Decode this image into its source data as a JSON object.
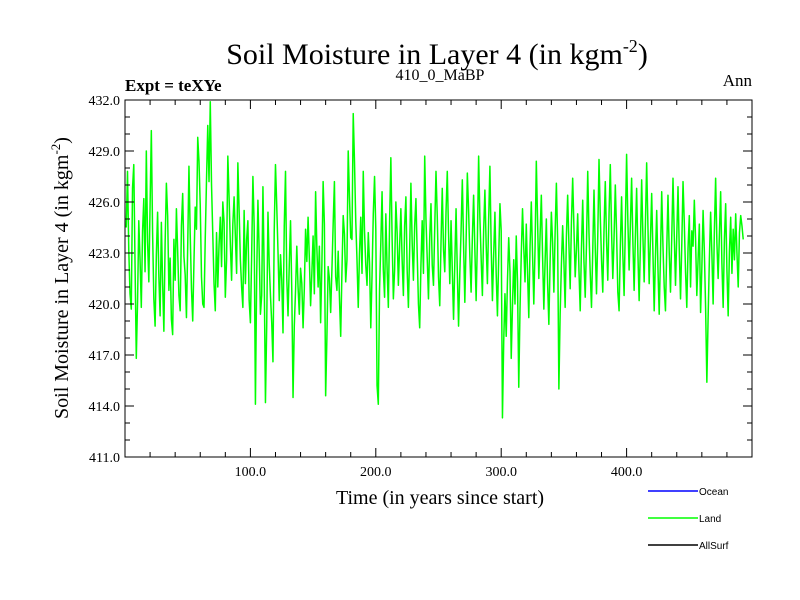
{
  "chart_data": {
    "type": "line",
    "title_main": "Soil Moisture in Layer 4 (in kgm",
    "title_sup": "-2",
    "title_close": ")",
    "subtitle_left": "Expt = teXYe",
    "subtitle_center": "410_0_MaBP",
    "subtitle_right": "Ann",
    "xlabel": "Time (in years since start)",
    "ylabel_main": "Soil Moisture in Layer 4 (in kgm",
    "ylabel_sup": "-2",
    "ylabel_close": ")",
    "xlim": [
      0,
      500
    ],
    "ylim": [
      411.0,
      432.0
    ],
    "x_ticks": [
      100,
      200,
      300,
      400
    ],
    "x_tick_labels": [
      "100.0",
      "200.0",
      "300.0",
      "400.0"
    ],
    "y_ticks": [
      411,
      414,
      417,
      420,
      423,
      426,
      429,
      432
    ],
    "y_tick_labels": [
      "411.0",
      "414.0",
      "417.0",
      "420.0",
      "423.0",
      "426.0",
      "429.0",
      "432.0"
    ],
    "legend_placement": "bottom-right, below plot",
    "series": [
      {
        "name": "Ocean",
        "color": "#0000ff",
        "values": []
      },
      {
        "name": "Land",
        "color": "#00ff00",
        "x_start": 1,
        "x_step": 1,
        "values": [
          424.5,
          427.8,
          423.2,
          420.6,
          419.7,
          426.8,
          428.2,
          422.4,
          416.8,
          420.1,
          424.9,
          422.6,
          419.8,
          424.3,
          426.2,
          421.9,
          429.0,
          423.7,
          421.3,
          425.8,
          430.2,
          424.2,
          420.3,
          418.7,
          422.9,
          425.4,
          421.6,
          419.3,
          424.8,
          421.2,
          418.4,
          423.6,
          427.1,
          425.2,
          420.8,
          422.7,
          419.1,
          418.2,
          423.8,
          421.4,
          425.6,
          423.1,
          420.5,
          419.6,
          424.6,
          426.5,
          422.8,
          421.7,
          419.2,
          423.4,
          428.1,
          424.1,
          420.9,
          419.0,
          422.5,
          425.7,
          424.4,
          429.8,
          428.4,
          425.8,
          421.6,
          420.0,
          419.8,
          423.9,
          427.3,
          430.5,
          427.2,
          431.9,
          427.0,
          424.1,
          421.2,
          419.6,
          424.2,
          421.0,
          423.5,
          425.1,
          422.2,
          426.0,
          424.8,
          420.4,
          422.6,
          428.7,
          426.3,
          423.5,
          421.4,
          424.7,
          426.3,
          424.0,
          421.8,
          428.3,
          425.5,
          422.6,
          421.0,
          419.8,
          425.5,
          421.2,
          423.8,
          424.9,
          420.2,
          418.9,
          422.8,
          427.5,
          424.6,
          414.1,
          421.6,
          426.1,
          423.1,
          419.4,
          420.5,
          426.9,
          421.8,
          414.2,
          418.7,
          425.4,
          422.4,
          420.5,
          418.9,
          416.6,
          424.3,
          428.2,
          425.8,
          423.1,
          420.2,
          422.9,
          421.4,
          418.3,
          424.6,
          427.8,
          421.5,
          419.3,
          422.3,
          424.9,
          420.8,
          414.5,
          418.7,
          420.8,
          423.4,
          421.0,
          419.4,
          422.1,
          421.2,
          418.6,
          420.9,
          424.4,
          422.5,
          425.1,
          422.7,
          419.9,
          421.8,
          424.0,
          420.6,
          426.6,
          423.3,
          421.0,
          423.4,
          418.9,
          422.3,
          427.2,
          424.7,
          414.6,
          418.0,
          422.2,
          421.5,
          419.5,
          422.0,
          424.7,
          427.2,
          421.6,
          420.8,
          423.1,
          420.4,
          418.1,
          421.9,
          425.2,
          424.1,
          421.3,
          422.6,
          429.0,
          426.3,
          423.9,
          423.8,
          431.2,
          428.4,
          424.9,
          422.6,
          419.8,
          423.0,
          425.1,
          421.8,
          427.8,
          424.3,
          422.3,
          421.1,
          424.2,
          422.4,
          418.6,
          421.7,
          425.3,
          427.5,
          424.4,
          415.2,
          414.1,
          420.9,
          423.6,
          426.6,
          422.0,
          420.4,
          425.3,
          422.1,
          419.8,
          424.8,
          428.6,
          423.9,
          420.3,
          422.0,
          426.0,
          424.2,
          421.1,
          423.4,
          425.6,
          422.6,
          420.5,
          424.6,
          426.3,
          422.0,
          419.8,
          423.2,
          427.1,
          423.6,
          421.4,
          424.6,
          426.2,
          423.0,
          420.0,
          418.6,
          422.3,
          424.9,
          421.8,
          428.7,
          425.0,
          422.7,
          420.3,
          423.9,
          425.9,
          422.3,
          421.1,
          424.5,
          427.8,
          425.2,
          421.6,
          419.9,
          423.6,
          426.8,
          423.2,
          421.9,
          425.4,
          427.8,
          424.2,
          421.2,
          424.9,
          422.0,
          419.1,
          422.4,
          425.6,
          421.9,
          418.7,
          421.8,
          424.3,
          427.3,
          423.5,
          420.1,
          423.7,
          427.7,
          425.5,
          422.8,
          420.7,
          423.9,
          426.4,
          423.2,
          420.2,
          423.7,
          428.7,
          425.1,
          422.7,
          420.5,
          424.3,
          426.7,
          423.5,
          421.2,
          425.0,
          428.1,
          423.4,
          420.2,
          422.9,
          425.4,
          421.8,
          419.3,
          422.7,
          425.9,
          424.3,
          413.3,
          417.8,
          420.6,
          418.1,
          421.4,
          423.9,
          421.9,
          416.8,
          419.9,
          422.6,
          420.0,
          424.0,
          421.3,
          415.1,
          419.7,
          422.9,
          425.6,
          423.3,
          421.3,
          424.7,
          421.9,
          419.2,
          423.4,
          426.0,
          422.9,
          420.0,
          423.3,
          428.4,
          424.9,
          421.5,
          424.0,
          426.4,
          422.8,
          419.7,
          422.5,
          425.0,
          421.2,
          418.8,
          422.5,
          425.4,
          423.6,
          420.7,
          424.2,
          427.1,
          423.8,
          415.0,
          419.4,
          422.3,
          424.6,
          422.5,
          419.8,
          424.0,
          426.4,
          423.5,
          420.9,
          424.8,
          427.4,
          424.5,
          421.6,
          423.2,
          425.3,
          422.0,
          419.6,
          423.3,
          426.1,
          422.5,
          420.4,
          423.5,
          427.8,
          424.2,
          421.8,
          419.8,
          423.1,
          426.7,
          423.3,
          420.6,
          424.0,
          428.5,
          425.2,
          422.6,
          420.7,
          424.4,
          427.2,
          423.7,
          421.4,
          425.3,
          428.2,
          424.3,
          421.5,
          423.9,
          427.0,
          424.2,
          420.7,
          419.6,
          423.4,
          426.3,
          422.9,
          420.5,
          424.6,
          428.8,
          424.9,
          422.0,
          424.6,
          427.4,
          423.7,
          420.8,
          424.0,
          426.8,
          423.0,
          420.2,
          423.4,
          427.3,
          424.0,
          421.3,
          424.7,
          428.3,
          424.6,
          421.2,
          423.8,
          426.5,
          423.0,
          419.6,
          422.8,
          425.5,
          422.1,
          419.4,
          422.8,
          426.6,
          423.4,
          421.0,
          419.6,
          423.2,
          426.4,
          423.0,
          420.7,
          423.9,
          427.4,
          424.1,
          421.1,
          424.0,
          426.9,
          423.2,
          420.3,
          423.5,
          427.2,
          424.8,
          421.9,
          419.8,
          423.3,
          425.2,
          421.0,
          424.3,
          423.4,
          426.1,
          423.8,
          420.5,
          422.6,
          424.7,
          419.5,
          422.1,
          425.5,
          423.1,
          419.8,
          415.4,
          419.2,
          422.6,
          425.4,
          423.0,
          420.0,
          424.3,
          427.4,
          423.6,
          421.5,
          424.1,
          426.6,
          422.4,
          419.8,
          423.8,
          425.9,
          422.0,
          419.3,
          423.1,
          425.1,
          421.8,
          424.4,
          422.6,
          425.3,
          423.0,
          421.0,
          424.2,
          425.2,
          424.6,
          423.8
        ]
      },
      {
        "name": "AllSurf",
        "color": "#000000",
        "values": []
      }
    ]
  }
}
